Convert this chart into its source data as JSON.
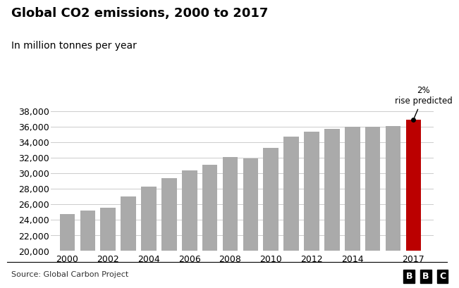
{
  "title": "Global CO2 emissions, 2000 to 2017",
  "subtitle": "In million tonnes per year",
  "source": "Source: Global Carbon Project",
  "bbc_logo": "BBC",
  "years": [
    2000,
    2001,
    2002,
    2003,
    2004,
    2005,
    2006,
    2007,
    2008,
    2009,
    2010,
    2011,
    2012,
    2013,
    2014,
    2015,
    2016,
    2017
  ],
  "values": [
    24700,
    25200,
    25550,
    27000,
    28300,
    29400,
    30400,
    31100,
    32100,
    31900,
    33300,
    34700,
    35300,
    35700,
    36000,
    35950,
    36100,
    36900
  ],
  "bar_colors_base": "#aaaaaa",
  "bar_color_highlight": "#bb0000",
  "highlight_year": 2017,
  "ylim": [
    20000,
    39000
  ],
  "yticks": [
    20000,
    22000,
    24000,
    26000,
    28000,
    30000,
    32000,
    34000,
    36000,
    38000
  ],
  "annotation_text": "2%\nrise predicted",
  "title_fontsize": 13,
  "subtitle_fontsize": 10,
  "tick_fontsize": 9,
  "source_fontsize": 8,
  "background_color": "#ffffff",
  "grid_color": "#cccccc",
  "text_color": "#000000",
  "xtick_labels": [
    2000,
    2002,
    2004,
    2006,
    2008,
    2010,
    2012,
    2014,
    2017
  ]
}
